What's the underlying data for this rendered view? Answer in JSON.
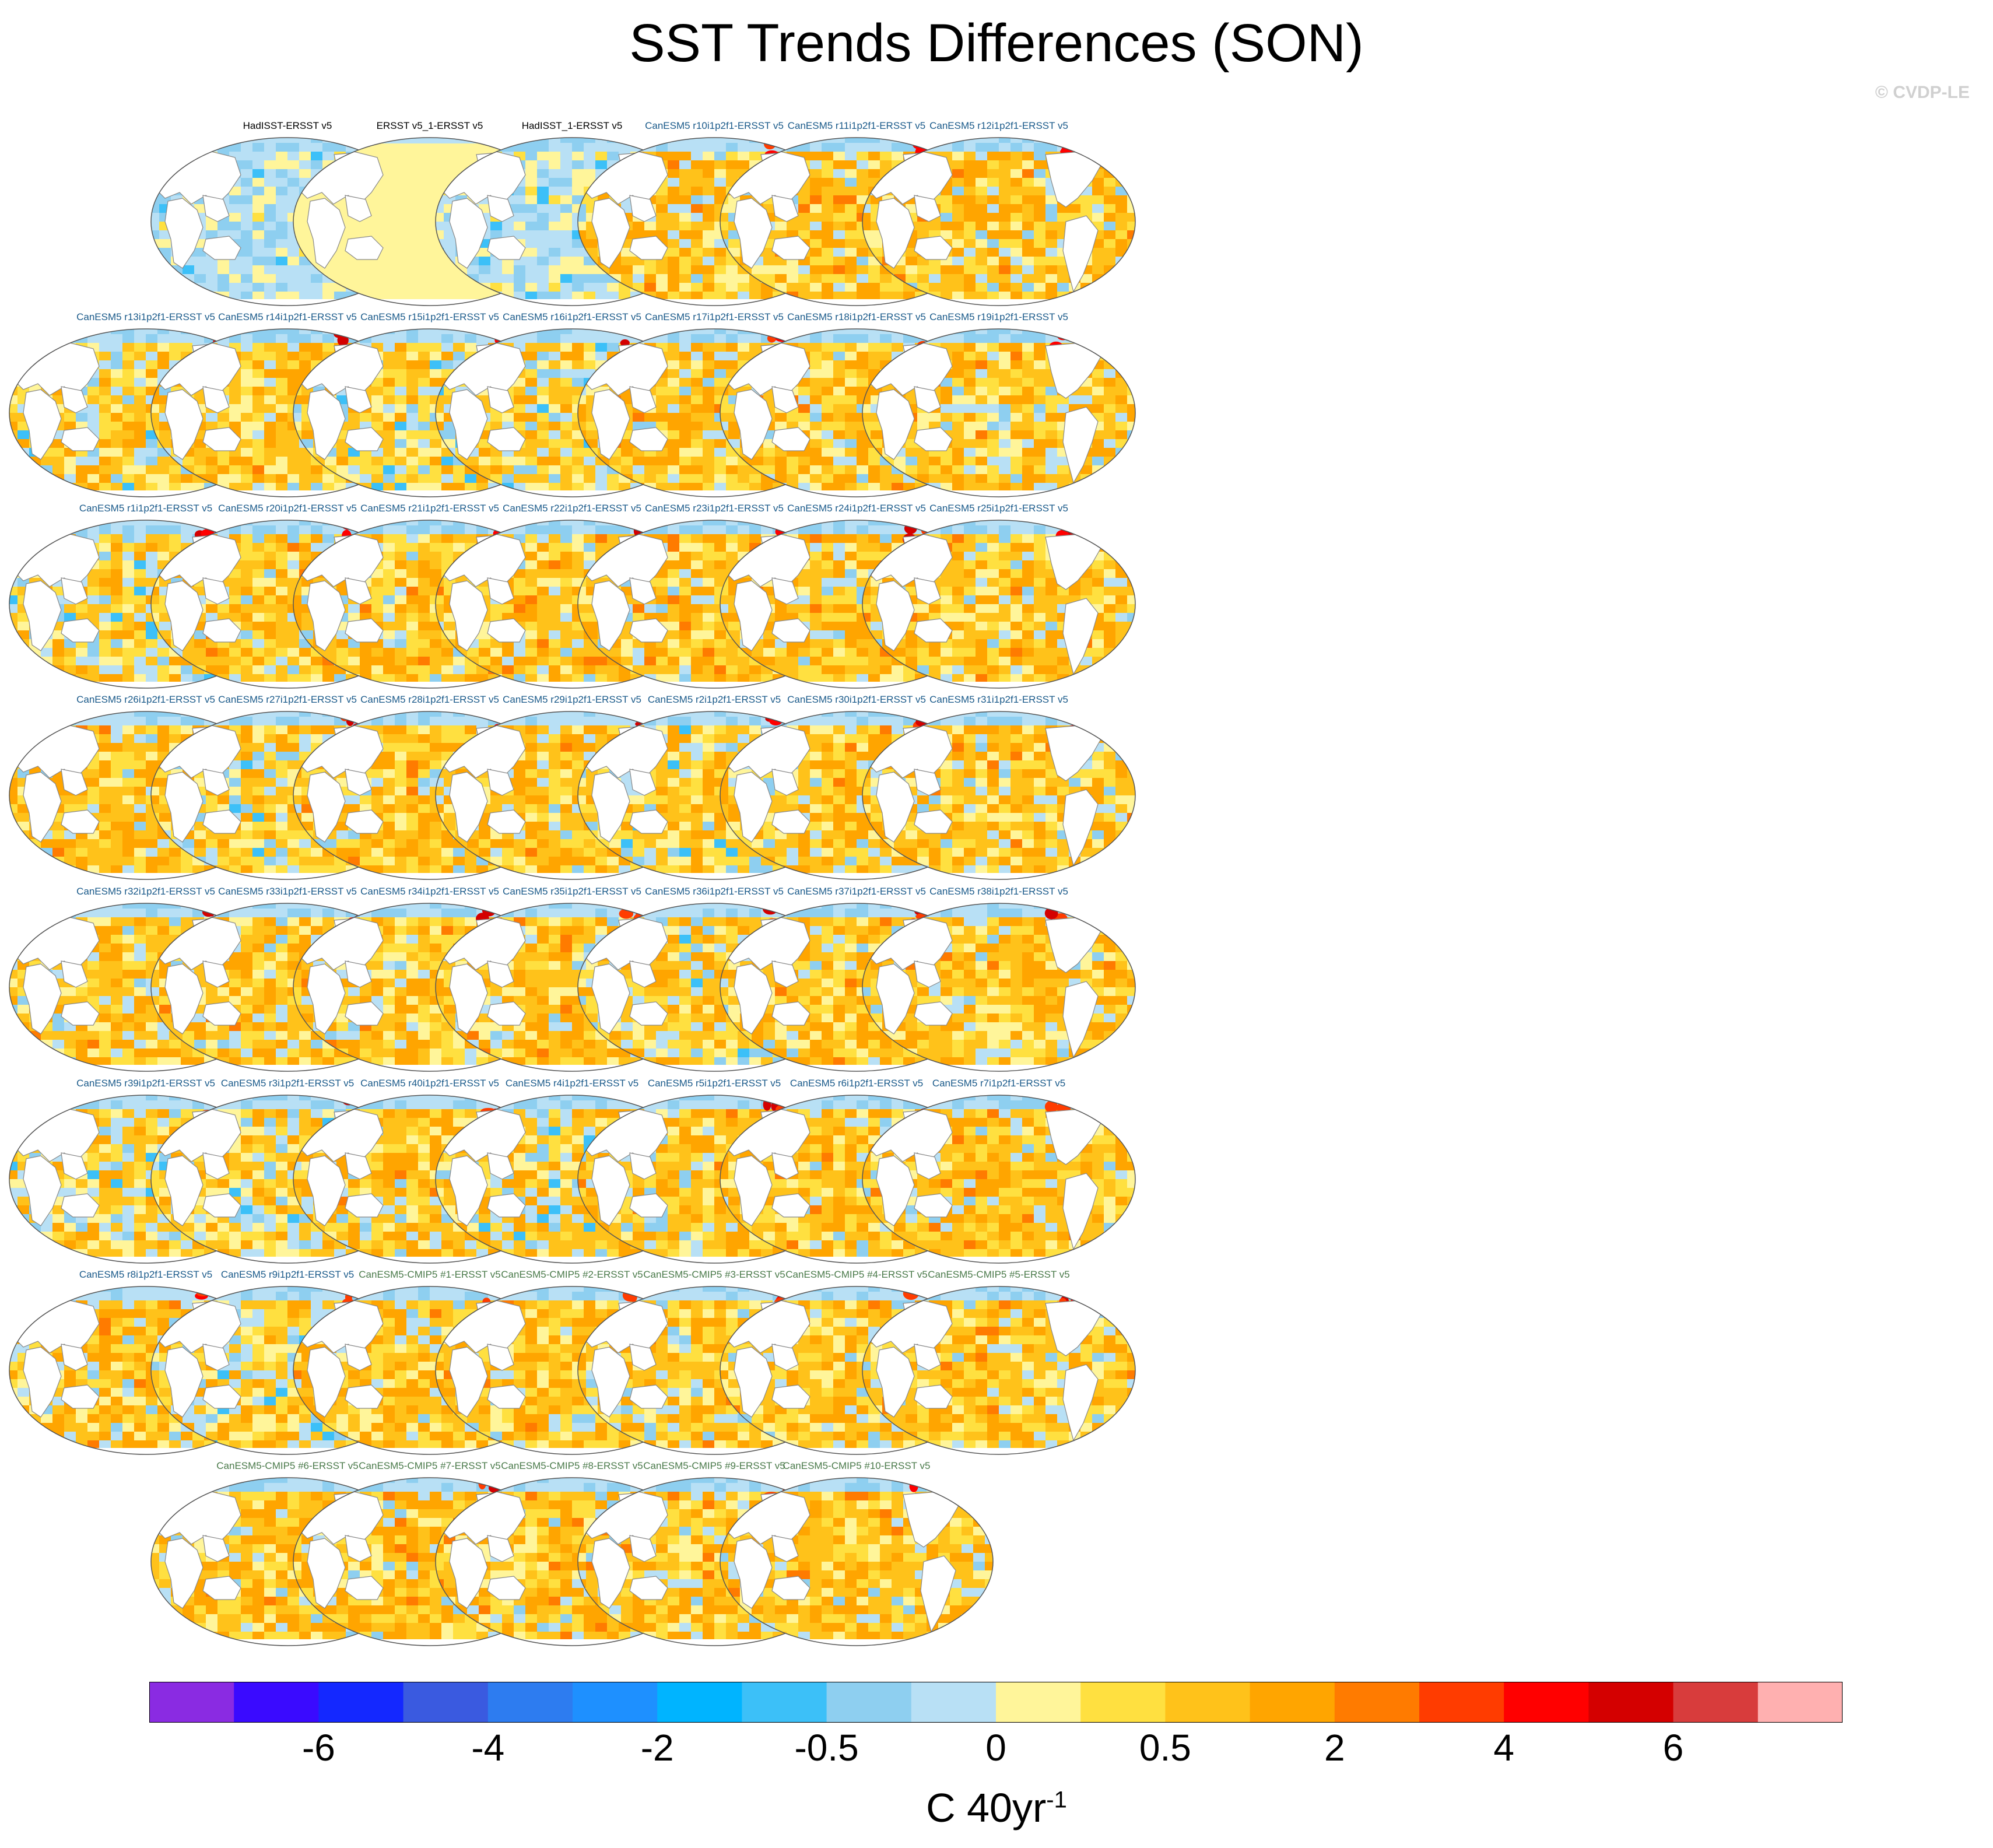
{
  "title": "SST Trends Differences (SON)",
  "watermark": "© CVDP-LE",
  "units": {
    "base": "C 40yr",
    "exponent": "-1"
  },
  "label_colors": {
    "obs": "#000000",
    "large_ensemble": "#1a5a8a",
    "cmip5": "#4a7a4a"
  },
  "land_color": "#ffffff",
  "coast_color": "#888888",
  "colorbar": {
    "colors": [
      "#8a2be2",
      "#3a0aff",
      "#1428ff",
      "#3a5ae0",
      "#2d7cf0",
      "#1e90ff",
      "#00b4ff",
      "#3cc0f8",
      "#8ecff0",
      "#b8e0f5",
      "#fff59a",
      "#ffe040",
      "#ffc21a",
      "#ffa500",
      "#ff7b00",
      "#ff3c00",
      "#ff0000",
      "#d40000",
      "#d83c3c",
      "#ffb0b0"
    ],
    "tick_labels": [
      "-6",
      "-4",
      "-2",
      "-0.5",
      "0",
      "0.5",
      "2",
      "4",
      "6"
    ]
  },
  "panels": [
    {
      "label": "HadISST-ERSST v5",
      "group": "obs",
      "pattern": "cool"
    },
    {
      "label": "ERSST v5_1-ERSST v5",
      "group": "obs",
      "pattern": "flat"
    },
    {
      "label": "HadISST_1-ERSST v5",
      "group": "obs",
      "pattern": "cool"
    },
    {
      "label": "CanESM5 r10i1p2f1-ERSST v5",
      "group": "large_ensemble",
      "pattern": "warm"
    },
    {
      "label": "CanESM5 r11i1p2f1-ERSST v5",
      "group": "large_ensemble",
      "pattern": "warm"
    },
    {
      "label": "CanESM5 r12i1p2f1-ERSST v5",
      "group": "large_ensemble",
      "pattern": "warm"
    },
    {
      "label": "CanESM5 r13i1p2f1-ERSST v5",
      "group": "large_ensemble",
      "pattern": "mixed"
    },
    {
      "label": "CanESM5 r14i1p2f1-ERSST v5",
      "group": "large_ensemble",
      "pattern": "warm"
    },
    {
      "label": "CanESM5 r15i1p2f1-ERSST v5",
      "group": "large_ensemble",
      "pattern": "mixed"
    },
    {
      "label": "CanESM5 r16i1p2f1-ERSST v5",
      "group": "large_ensemble",
      "pattern": "mixed"
    },
    {
      "label": "CanESM5 r17i1p2f1-ERSST v5",
      "group": "large_ensemble",
      "pattern": "warm"
    },
    {
      "label": "CanESM5 r18i1p2f1-ERSST v5",
      "group": "large_ensemble",
      "pattern": "warm"
    },
    {
      "label": "CanESM5 r19i1p2f1-ERSST v5",
      "group": "large_ensemble",
      "pattern": "warm"
    },
    {
      "label": "CanESM5 r1i1p2f1-ERSST v5",
      "group": "large_ensemble",
      "pattern": "mixed"
    },
    {
      "label": "CanESM5 r20i1p2f1-ERSST v5",
      "group": "large_ensemble",
      "pattern": "warm"
    },
    {
      "label": "CanESM5 r21i1p2f1-ERSST v5",
      "group": "large_ensemble",
      "pattern": "warm"
    },
    {
      "label": "CanESM5 r22i1p2f1-ERSST v5",
      "group": "large_ensemble",
      "pattern": "warm"
    },
    {
      "label": "CanESM5 r23i1p2f1-ERSST v5",
      "group": "large_ensemble",
      "pattern": "warm"
    },
    {
      "label": "CanESM5 r24i1p2f1-ERSST v5",
      "group": "large_ensemble",
      "pattern": "warm"
    },
    {
      "label": "CanESM5 r25i1p2f1-ERSST v5",
      "group": "large_ensemble",
      "pattern": "warm"
    },
    {
      "label": "CanESM5 r26i1p2f1-ERSST v5",
      "group": "large_ensemble",
      "pattern": "warm"
    },
    {
      "label": "CanESM5 r27i1p2f1-ERSST v5",
      "group": "large_ensemble",
      "pattern": "mixed"
    },
    {
      "label": "CanESM5 r28i1p2f1-ERSST v5",
      "group": "large_ensemble",
      "pattern": "warm"
    },
    {
      "label": "CanESM5 r29i1p2f1-ERSST v5",
      "group": "large_ensemble",
      "pattern": "warm"
    },
    {
      "label": "CanESM5 r2i1p2f1-ERSST v5",
      "group": "large_ensemble",
      "pattern": "mixed"
    },
    {
      "label": "CanESM5 r30i1p2f1-ERSST v5",
      "group": "large_ensemble",
      "pattern": "warm"
    },
    {
      "label": "CanESM5 r31i1p2f1-ERSST v5",
      "group": "large_ensemble",
      "pattern": "warm"
    },
    {
      "label": "CanESM5 r32i1p2f1-ERSST v5",
      "group": "large_ensemble",
      "pattern": "warm"
    },
    {
      "label": "CanESM5 r33i1p2f1-ERSST v5",
      "group": "large_ensemble",
      "pattern": "warm"
    },
    {
      "label": "CanESM5 r34i1p2f1-ERSST v5",
      "group": "large_ensemble",
      "pattern": "warm"
    },
    {
      "label": "CanESM5 r35i1p2f1-ERSST v5",
      "group": "large_ensemble",
      "pattern": "warm"
    },
    {
      "label": "CanESM5 r36i1p2f1-ERSST v5",
      "group": "large_ensemble",
      "pattern": "mixed"
    },
    {
      "label": "CanESM5 r37i1p2f1-ERSST v5",
      "group": "large_ensemble",
      "pattern": "warm"
    },
    {
      "label": "CanESM5 r38i1p2f1-ERSST v5",
      "group": "large_ensemble",
      "pattern": "warm"
    },
    {
      "label": "CanESM5 r39i1p2f1-ERSST v5",
      "group": "large_ensemble",
      "pattern": "mixed"
    },
    {
      "label": "CanESM5 r3i1p2f1-ERSST v5",
      "group": "large_ensemble",
      "pattern": "mixed"
    },
    {
      "label": "CanESM5 r40i1p2f1-ERSST v5",
      "group": "large_ensemble",
      "pattern": "warm"
    },
    {
      "label": "CanESM5 r4i1p2f1-ERSST v5",
      "group": "large_ensemble",
      "pattern": "mixed"
    },
    {
      "label": "CanESM5 r5i1p2f1-ERSST v5",
      "group": "large_ensemble",
      "pattern": "warm"
    },
    {
      "label": "CanESM5 r6i1p2f1-ERSST v5",
      "group": "large_ensemble",
      "pattern": "warm"
    },
    {
      "label": "CanESM5 r7i1p2f1-ERSST v5",
      "group": "large_ensemble",
      "pattern": "warm"
    },
    {
      "label": "CanESM5 r8i1p2f1-ERSST v5",
      "group": "large_ensemble",
      "pattern": "warm"
    },
    {
      "label": "CanESM5 r9i1p2f1-ERSST v5",
      "group": "large_ensemble",
      "pattern": "mixed"
    },
    {
      "label": "CanESM5-CMIP5 #1-ERSST v5",
      "group": "cmip5",
      "pattern": "warm"
    },
    {
      "label": "CanESM5-CMIP5 #2-ERSST v5",
      "group": "cmip5",
      "pattern": "warm"
    },
    {
      "label": "CanESM5-CMIP5 #3-ERSST v5",
      "group": "cmip5",
      "pattern": "warm"
    },
    {
      "label": "CanESM5-CMIP5 #4-ERSST v5",
      "group": "cmip5",
      "pattern": "warm"
    },
    {
      "label": "CanESM5-CMIP5 #5-ERSST v5",
      "group": "cmip5",
      "pattern": "warm"
    },
    {
      "label": "CanESM5-CMIP5 #6-ERSST v5",
      "group": "cmip5",
      "pattern": "warm"
    },
    {
      "label": "CanESM5-CMIP5 #7-ERSST v5",
      "group": "cmip5",
      "pattern": "warm"
    },
    {
      "label": "CanESM5-CMIP5 #8-ERSST v5",
      "group": "cmip5",
      "pattern": "warm"
    },
    {
      "label": "CanESM5-CMIP5 #9-ERSST v5",
      "group": "cmip5",
      "pattern": "warm"
    },
    {
      "label": "CanESM5-CMIP5 #10-ERSST v5",
      "group": "cmip5",
      "pattern": "warm"
    }
  ]
}
